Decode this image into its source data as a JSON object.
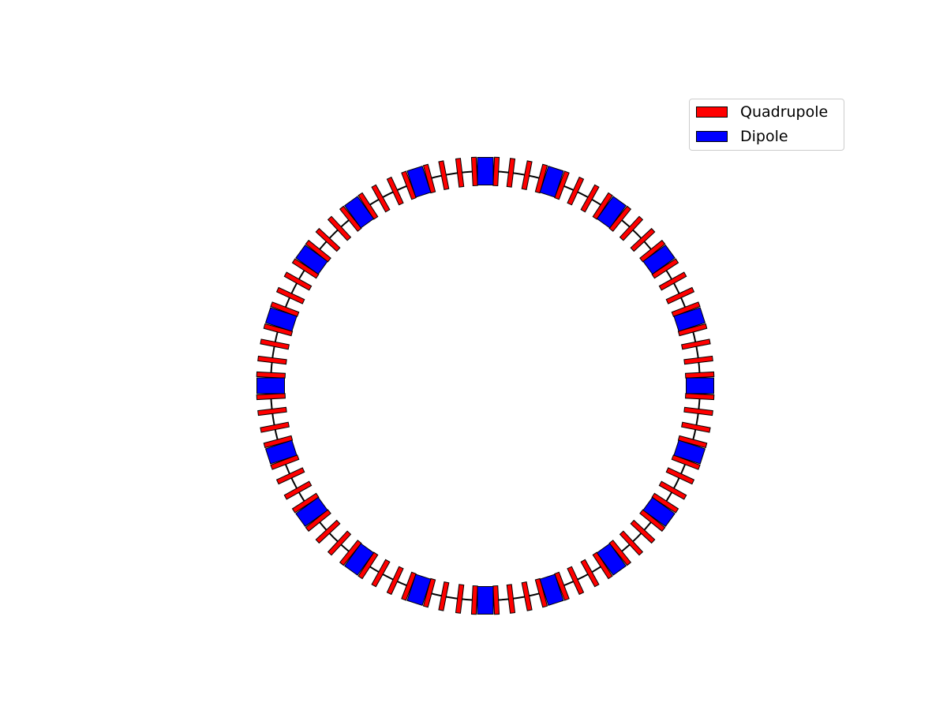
{
  "legend": {
    "items": [
      {
        "label": "Quadrupole",
        "color": "#ff0000"
      },
      {
        "label": "Dipole",
        "color": "#0000ff"
      }
    ]
  },
  "diagram": {
    "ring_color": "#000000",
    "dipole_count": 20,
    "quadrupoles_per_gap": 4,
    "dipole_color": "#0000ff",
    "quadrupole_color": "#ff0000",
    "outline_color": "#000000"
  }
}
